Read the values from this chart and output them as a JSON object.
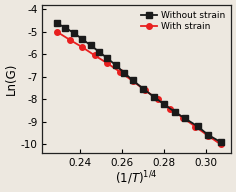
{
  "title": "",
  "xlabel": "$(1/T)^{1/4}$",
  "ylabel": "Ln(G)",
  "xlim": [
    0.222,
    0.312
  ],
  "ylim": [
    -10.4,
    -3.8
  ],
  "xticks": [
    0.24,
    0.26,
    0.28,
    0.3
  ],
  "yticks": [
    -10,
    -9,
    -8,
    -7,
    -6,
    -5,
    -4
  ],
  "without_strain_x": [
    0.229,
    0.233,
    0.237,
    0.241,
    0.245,
    0.249,
    0.253,
    0.257,
    0.261,
    0.265,
    0.27,
    0.275,
    0.28,
    0.285,
    0.29,
    0.296,
    0.301,
    0.307
  ],
  "without_strain_y": [
    -4.62,
    -4.82,
    -5.05,
    -5.32,
    -5.6,
    -5.88,
    -6.18,
    -6.48,
    -6.82,
    -7.15,
    -7.52,
    -7.88,
    -8.22,
    -8.55,
    -8.85,
    -9.2,
    -9.58,
    -9.9
  ],
  "with_strain_x": [
    0.229,
    0.235,
    0.241,
    0.247,
    0.253,
    0.259,
    0.265,
    0.271,
    0.277,
    0.283,
    0.289,
    0.295,
    0.301,
    0.307
  ],
  "with_strain_y": [
    -5.0,
    -5.35,
    -5.68,
    -6.05,
    -6.4,
    -6.78,
    -7.18,
    -7.6,
    -8.0,
    -8.42,
    -8.82,
    -9.22,
    -9.62,
    -10.0
  ],
  "color_without": "#1a1a1a",
  "color_with": "#e82020",
  "legend_without": "Without strain",
  "legend_with": "With strain",
  "bg_color": "#ede8e0",
  "marker_without": "s",
  "marker_with": "o",
  "markersize": 4.0,
  "linewidth": 1.3,
  "tick_labelsize": 7.5,
  "xlabel_fontsize": 8.5,
  "ylabel_fontsize": 8.5,
  "legend_fontsize": 6.5
}
